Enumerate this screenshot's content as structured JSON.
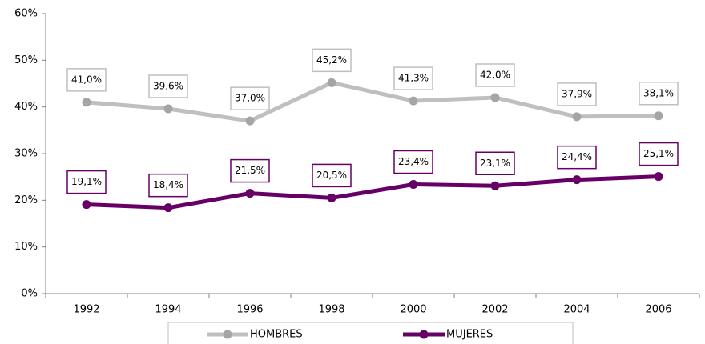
{
  "chart_data": {
    "type": "line",
    "categories": [
      "1992",
      "1994",
      "1996",
      "1998",
      "2000",
      "2002",
      "2004",
      "2006"
    ],
    "series": [
      {
        "name": "HOMBRES",
        "color": "#bfbfbf",
        "marker_color": "#a5a5a5",
        "values": [
          41.0,
          39.6,
          37.0,
          45.2,
          41.3,
          42.0,
          37.9,
          38.1
        ],
        "value_labels": [
          "41,0%",
          "39,6%",
          "37,0%",
          "45,2%",
          "41,3%",
          "42,0%",
          "37,9%",
          "38,1%"
        ]
      },
      {
        "name": "MUJERES",
        "color": "#660066",
        "marker_color": "#660066",
        "values": [
          19.1,
          18.4,
          21.5,
          20.5,
          23.4,
          23.1,
          24.4,
          25.1
        ],
        "value_labels": [
          "19,1%",
          "18,4%",
          "21,5%",
          "20,5%",
          "23,4%",
          "23,1%",
          "24,4%",
          "25,1%"
        ]
      }
    ],
    "ylim": [
      0,
      60
    ],
    "yticks": [
      {
        "value": 0,
        "label": "0%"
      },
      {
        "value": 10,
        "label": "10%"
      },
      {
        "value": 20,
        "label": "20%"
      },
      {
        "value": 30,
        "label": "30%"
      },
      {
        "value": 40,
        "label": "40%"
      },
      {
        "value": 50,
        "label": "50%"
      },
      {
        "value": 60,
        "label": "60%"
      }
    ],
    "grid": false,
    "legend": "bottom"
  }
}
